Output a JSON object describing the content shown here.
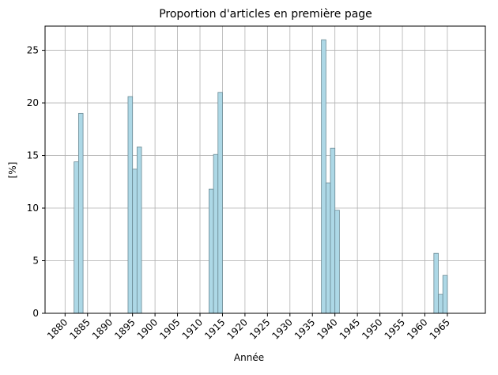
{
  "chart_data": {
    "type": "bar",
    "title": "Proportion d'articles en première page",
    "x_label": "Année",
    "y_label": "[%]",
    "x": [
      1880,
      1881,
      1882,
      1883,
      1884,
      1885,
      1886,
      1887,
      1888,
      1889,
      1890,
      1891,
      1892,
      1893,
      1894,
      1895,
      1896,
      1897,
      1898,
      1899,
      1900,
      1901,
      1902,
      1903,
      1904,
      1905,
      1906,
      1907,
      1908,
      1909,
      1910,
      1911,
      1912,
      1913,
      1914,
      1915,
      1916,
      1917,
      1918,
      1919,
      1920,
      1921,
      1922,
      1923,
      1924,
      1925,
      1926,
      1927,
      1928,
      1929,
      1930,
      1931,
      1932,
      1933,
      1934,
      1935,
      1936,
      1937,
      1938,
      1939,
      1940,
      1941,
      1942,
      1943,
      1944,
      1945,
      1946,
      1947,
      1948,
      1949,
      1950,
      1951,
      1952,
      1953,
      1954,
      1955,
      1956,
      1957,
      1958,
      1959,
      1960,
      1961,
      1962,
      1963,
      1964,
      1965,
      1966,
      1967,
      1968
    ],
    "values": [
      0,
      0,
      14.4,
      19.0,
      0,
      0,
      0,
      0,
      0,
      0,
      0,
      0,
      0,
      0,
      20.6,
      13.7,
      15.8,
      0,
      0,
      0,
      0,
      0,
      0,
      0,
      0,
      0,
      0,
      0,
      0,
      0,
      0,
      0,
      11.8,
      15.1,
      21.0,
      0,
      0,
      0,
      0,
      0,
      0,
      0,
      0,
      0,
      0,
      0,
      0,
      0,
      0,
      0,
      0,
      0,
      0,
      0,
      0,
      0,
      0,
      26.0,
      12.4,
      15.7,
      9.8,
      0,
      0,
      0,
      0,
      0,
      0,
      0,
      0,
      0,
      0,
      0,
      0,
      0,
      0,
      0,
      0,
      0,
      0,
      0,
      0,
      0,
      5.7,
      1.8,
      3.6,
      0,
      0,
      0,
      0
    ],
    "color": "#add8e6",
    "edgecolor": "#6b8a94",
    "xlim": [
      1875.55,
      1973.45
    ],
    "xticks": [
      1880,
      1885,
      1890,
      1895,
      1900,
      1905,
      1910,
      1915,
      1920,
      1925,
      1930,
      1935,
      1940,
      1945,
      1950,
      1955,
      1960,
      1965
    ],
    "ylim": [
      0,
      27.3
    ],
    "yticks": [
      0,
      5,
      10,
      15,
      20,
      25
    ],
    "grid": true
  }
}
